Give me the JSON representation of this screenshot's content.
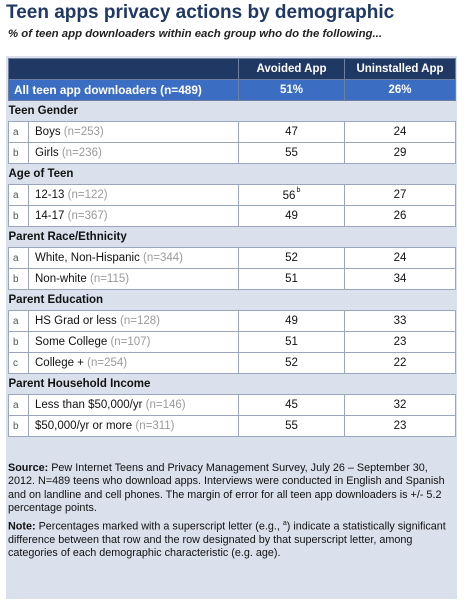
{
  "title": "Teen apps privacy actions by demographic",
  "subtitle": "% of teen app downloaders within each group who do the following...",
  "columns": [
    "Avoided App",
    "Uninstalled App"
  ],
  "all_row": {
    "label": "All teen app downloaders (n=489)",
    "values": [
      "51%",
      "26%"
    ]
  },
  "sections": [
    {
      "title": "Teen Gender",
      "rows": [
        {
          "letter": "a",
          "label": "Boys",
          "n": "(n=253)",
          "v1": "47",
          "v1_sup": "",
          "v2": "24"
        },
        {
          "letter": "b",
          "label": "Girls",
          "n": "(n=236)",
          "v1": "55",
          "v1_sup": "",
          "v2": "29"
        }
      ]
    },
    {
      "title": "Age of Teen",
      "rows": [
        {
          "letter": "a",
          "label": "12-13",
          "n": "(n=122)",
          "v1": "56",
          "v1_sup": "b",
          "v2": "27"
        },
        {
          "letter": "b",
          "label": "14-17",
          "n": "(n=367)",
          "v1": "49",
          "v1_sup": "",
          "v2": "26"
        }
      ]
    },
    {
      "title": "Parent Race/Ethnicity",
      "rows": [
        {
          "letter": "a",
          "label": "White, Non-Hispanic",
          "n": "(n=344)",
          "v1": "52",
          "v1_sup": "",
          "v2": "24"
        },
        {
          "letter": "b",
          "label": "Non-white",
          "n": "(n=115)",
          "v1": "51",
          "v1_sup": "",
          "v2": "34"
        }
      ]
    },
    {
      "title": "Parent Education",
      "rows": [
        {
          "letter": "a",
          "label": "HS Grad or less",
          "n": "(n=128)",
          "v1": "49",
          "v1_sup": "",
          "v2": "33"
        },
        {
          "letter": "b",
          "label": "Some College",
          "n": "(n=107)",
          "v1": "51",
          "v1_sup": "",
          "v2": "23"
        },
        {
          "letter": "c",
          "label": "College +",
          "n": "(n=254)",
          "v1": "52",
          "v1_sup": "",
          "v2": "22"
        }
      ]
    },
    {
      "title": "Parent Household Income",
      "rows": [
        {
          "letter": "a",
          "label": "Less than $50,000/yr",
          "n": "(n=146)",
          "v1": "45",
          "v1_sup": "",
          "v2": "32"
        },
        {
          "letter": "b",
          "label": "$50,000/yr or more",
          "n": "(n=311)",
          "v1": "55",
          "v1_sup": "",
          "v2": "23"
        }
      ]
    }
  ],
  "notes": {
    "source_label": "Source:",
    "source_text": " Pew Internet Teens and Privacy Management Survey, July 26 – September 30, 2012. N=489 teens who download apps.  Interviews were conducted in English and Spanish and on landline and cell phones.  The margin of error for all teen app downloaders  is +/- 5.2 percentage points.",
    "note_label": "Note:",
    "note_text_1": " Percentages marked with a superscript letter (e.g., ",
    "note_sup": "a",
    "note_text_2": ") indicate a statistically significant difference between that row and the row designated by that superscript letter, among categories of each demographic characteristic (e.g. age)."
  },
  "colors": {
    "title": "#1f3864",
    "header_bg": "#1f3864",
    "all_row_bg": "#3b6ec2",
    "section_bg": "#dbe1ec"
  }
}
